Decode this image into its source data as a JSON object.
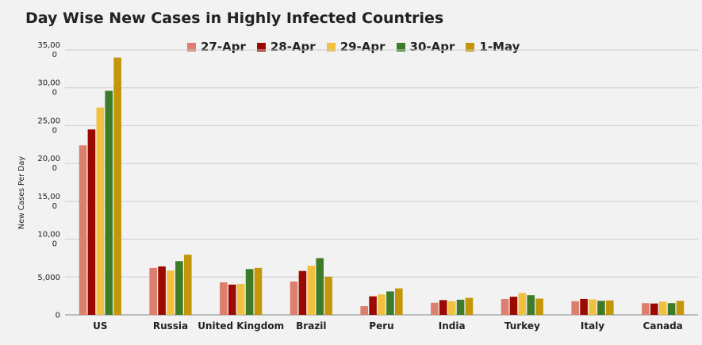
{
  "chart_data": {
    "type": "bar",
    "title": "Day Wise New Cases in Highly Infected Countries",
    "xlabel": "",
    "ylabel": "New Cases Per Day",
    "ylim": [
      0,
      35000
    ],
    "grid": true,
    "legend_position": "top",
    "y_ticks": [
      {
        "value": 0,
        "label": "0"
      },
      {
        "value": 5000,
        "label": "5,000"
      },
      {
        "value": 10000,
        "label": "10,00 0"
      },
      {
        "value": 15000,
        "label": "15,00 0"
      },
      {
        "value": 20000,
        "label": "20,00 0"
      },
      {
        "value": 25000,
        "label": "25,00 0"
      },
      {
        "value": 30000,
        "label": "30,00 0"
      },
      {
        "value": 35000,
        "label": "35,00 0"
      }
    ],
    "categories": [
      "US",
      "Russia",
      "United Kingdom",
      "Brazil",
      "Peru",
      "India",
      "Turkey",
      "Italy",
      "Canada"
    ],
    "series": [
      {
        "name": "27-Apr",
        "color": "#dc7f6e",
        "values": [
          22400,
          6200,
          4300,
          4400,
          1150,
          1600,
          2100,
          1800,
          1550
        ]
      },
      {
        "name": "28-Apr",
        "color": "#9b0a00",
        "values": [
          24500,
          6400,
          4000,
          5800,
          2450,
          1950,
          2400,
          2100,
          1500
        ]
      },
      {
        "name": "29-Apr",
        "color": "#f0c040",
        "values": [
          27400,
          5850,
          4100,
          6500,
          2700,
          1800,
          2900,
          2050,
          1750
        ]
      },
      {
        "name": "30-Apr",
        "color": "#3e7b28",
        "values": [
          29600,
          7100,
          6050,
          7500,
          3100,
          2000,
          2600,
          1850,
          1550
        ]
      },
      {
        "name": "1-May",
        "color": "#c4960a",
        "values": [
          34000,
          7950,
          6200,
          5050,
          3500,
          2250,
          2150,
          1900,
          1850
        ]
      }
    ]
  }
}
